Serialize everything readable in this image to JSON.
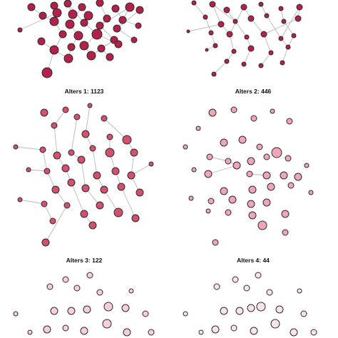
{
  "panels": [
    {
      "label": "Alters 1: 1123",
      "color": "#b3214a"
    },
    {
      "label": "Alters 2: 446",
      "color": "#b3214a"
    },
    {
      "label": "Alters 3: 122",
      "color": "#d3506e"
    },
    {
      "label": "Alters 4: 44",
      "color": "#f0a6b8"
    },
    {
      "label": "",
      "color": "#f7cfd8"
    },
    {
      "label": "",
      "color": "#fbe4ea"
    }
  ]
}
